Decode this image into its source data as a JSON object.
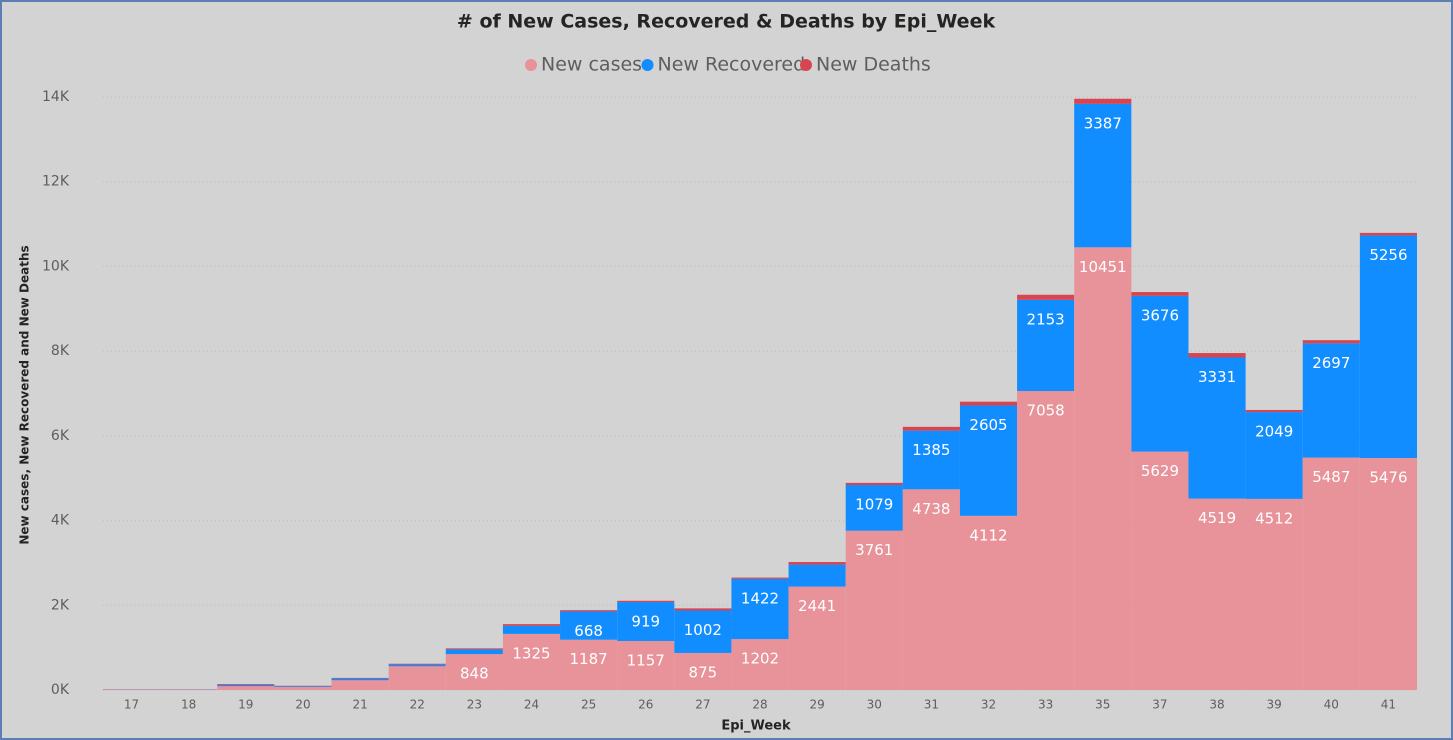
{
  "chart_data": {
    "type": "stacked_bar",
    "title": "# of New Cases, Recovered & Deaths by Epi_Week",
    "x_label": "Epi_Week",
    "y_label": "New cases, New Recovered and New Deaths",
    "categories": [
      "17",
      "18",
      "19",
      "20",
      "21",
      "22",
      "23",
      "24",
      "25",
      "26",
      "27",
      "28",
      "29",
      "30",
      "31",
      "32",
      "33",
      "35",
      "37",
      "38",
      "39",
      "40",
      "41"
    ],
    "series": [
      {
        "name": "New cases",
        "color": "#e8929a",
        "values": [
          15,
          15,
          90,
          70,
          230,
          560,
          848,
          1325,
          1187,
          1157,
          875,
          1202,
          2441,
          3761,
          4738,
          4112,
          7058,
          10451,
          5629,
          4519,
          4512,
          5487,
          5476
        ],
        "value_labels": [
          null,
          null,
          null,
          null,
          null,
          null,
          "848",
          "1325",
          "1187",
          "1157",
          "875",
          "1202",
          "2441",
          "3761",
          "4738",
          "4112",
          "7058",
          "10451",
          "5629",
          "4519",
          "4512",
          "5487",
          "5476"
        ]
      },
      {
        "name": "New Recovered",
        "color": "#118dff",
        "values": [
          5,
          5,
          30,
          20,
          40,
          40,
          110,
          190,
          668,
          919,
          1002,
          1422,
          520,
          1079,
          1385,
          2605,
          2153,
          3387,
          3676,
          3331,
          2049,
          2697,
          5256
        ],
        "value_labels": [
          null,
          null,
          null,
          null,
          null,
          null,
          null,
          null,
          "668",
          "919",
          "1002",
          "1422",
          null,
          "1079",
          "1385",
          "2605",
          "2153",
          "3387",
          "3676",
          "3331",
          "2049",
          "2697",
          "5256"
        ]
      },
      {
        "name": "New Deaths",
        "color": "#d64550",
        "values": [
          2,
          2,
          20,
          10,
          15,
          20,
          25,
          40,
          30,
          30,
          50,
          30,
          60,
          50,
          90,
          90,
          120,
          120,
          90,
          105,
          50,
          75,
          60
        ]
      }
    ],
    "ylim": [
      0,
      14000
    ],
    "yticks": [
      {
        "value": 0,
        "label": "0K"
      },
      {
        "value": 2000,
        "label": "2K"
      },
      {
        "value": 4000,
        "label": "4K"
      },
      {
        "value": 6000,
        "label": "6K"
      },
      {
        "value": 8000,
        "label": "8K"
      },
      {
        "value": 10000,
        "label": "10K"
      },
      {
        "value": 12000,
        "label": "12K"
      },
      {
        "value": 14000,
        "label": "14K"
      }
    ],
    "grid": true
  }
}
